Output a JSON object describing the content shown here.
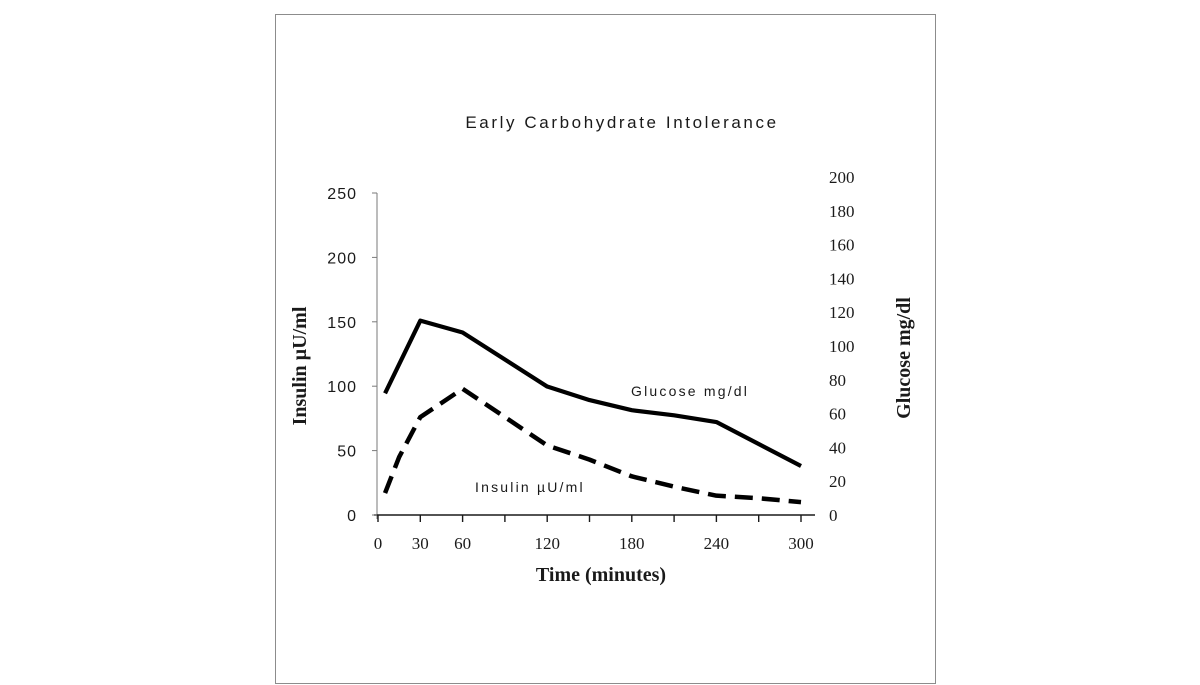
{
  "chart_data": {
    "type": "line",
    "title": "Early Carbohydrate Intolerance",
    "xlabel": "Time (minutes)",
    "ylabel_left": "Insulin µU/ml",
    "ylabel_right": "Glucose mg/dl",
    "xlim": [
      0,
      300
    ],
    "ylim_left": [
      0,
      250
    ],
    "ylim_right": [
      0,
      200
    ],
    "x_ticks": [
      0,
      30,
      60,
      120,
      180,
      240,
      300
    ],
    "y_ticks_left": [
      0,
      50,
      100,
      150,
      200,
      250
    ],
    "y_ticks_right": [
      0,
      20,
      40,
      60,
      80,
      100,
      120,
      140,
      160,
      180,
      200
    ],
    "grid": false,
    "legend": "inline labels",
    "series": [
      {
        "name": "Glucose mg/dl",
        "axis": "right",
        "style": "solid",
        "x": [
          5,
          30,
          60,
          120,
          150,
          180,
          210,
          240,
          270,
          300
        ],
        "y": [
          72,
          115,
          108,
          76,
          68,
          62,
          59,
          55,
          42,
          29
        ]
      },
      {
        "name": "Insulin µU/ml",
        "axis": "left",
        "style": "dashed",
        "x": [
          5,
          15,
          30,
          60,
          90,
          120,
          150,
          180,
          210,
          240,
          270,
          300
        ],
        "y": [
          17,
          45,
          76,
          98,
          76,
          54,
          43,
          30,
          22,
          15,
          13,
          10
        ]
      }
    ]
  }
}
